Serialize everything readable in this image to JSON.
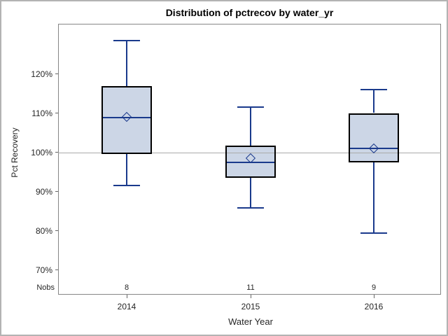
{
  "page": {
    "background": "#ffffff",
    "outer_border_color": "#b3b3b3"
  },
  "chart_data": {
    "type": "boxplot",
    "title": "Distribution of pctrecov by water_yr",
    "xlabel": "Water Year",
    "ylabel": "Pct Recovery",
    "categories": [
      "2014",
      "2015",
      "2016"
    ],
    "nobs_label": "Nobs",
    "nobs": [
      8,
      11,
      9
    ],
    "y_tick_values": [
      70,
      80,
      90,
      100,
      110,
      120
    ],
    "y_tick_suffix": "%",
    "ylim": [
      63,
      133
    ],
    "grid": false,
    "reference_line": 100,
    "legend": "none",
    "series": [
      {
        "category": "2014",
        "n": 8,
        "whisker_low": 91.5,
        "q1": 99.6,
        "median": 108.8,
        "mean": 109.0,
        "q3": 116.8,
        "whisker_high": 128.5
      },
      {
        "category": "2015",
        "n": 11,
        "whisker_low": 85.8,
        "q1": 93.4,
        "median": 97.4,
        "mean": 98.4,
        "q3": 101.7,
        "whisker_high": 111.5
      },
      {
        "category": "2016",
        "n": 9,
        "whisker_low": 79.4,
        "q1": 97.4,
        "median": 100.9,
        "mean": 100.9,
        "q3": 110.0,
        "whisker_high": 116.0
      }
    ],
    "colors": {
      "box_fill": "#ccd6e6",
      "box_border": "#000000",
      "line": "#1a3a8c",
      "reference_line": "#aaaaaa",
      "frame_border": "#868686",
      "tick": "#666666",
      "axis_text": "#262626",
      "title_text": "#000000"
    }
  }
}
